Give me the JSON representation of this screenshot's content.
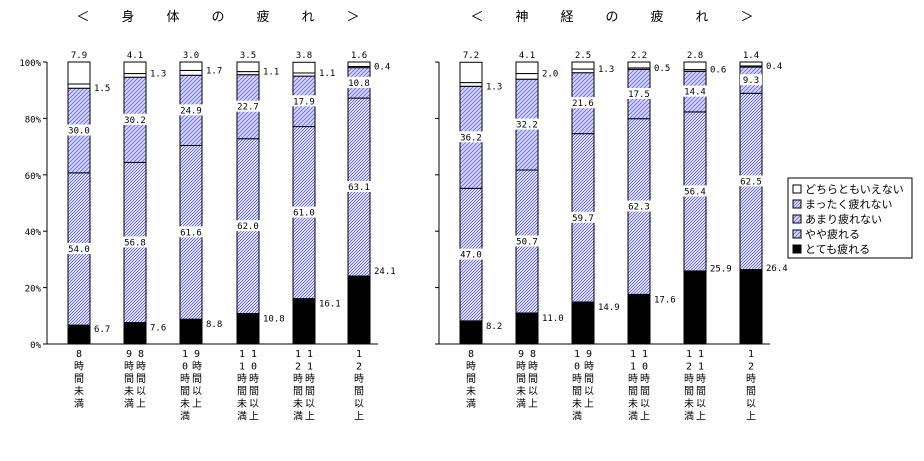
{
  "chart_data": {
    "type": "bar",
    "stacked": true,
    "y_axis": {
      "min": 0,
      "max": 100,
      "ticks": [
        "0%",
        "20%",
        "40%",
        "60%",
        "80%",
        "100%"
      ]
    },
    "legend": {
      "placement": "right",
      "entries": [
        "どちらともいえない",
        "まったく疲れない",
        "あまり疲れない",
        "やや疲れる",
        "とても疲れる"
      ]
    },
    "stack_order_bottom_to_top": [
      "とても疲れる",
      "やや疲れる",
      "あまり疲れない",
      "まったく疲れない",
      "どちらともいえない"
    ],
    "charts": [
      {
        "title": "＜ 身 体 の 疲 れ ＞",
        "categories": [
          [
            "8",
            "時",
            "間",
            "未",
            "満"
          ],
          [
            "8",
            "時",
            "間",
            "以",
            "上",
            "9",
            "時",
            "間",
            "未",
            "満"
          ],
          [
            "9",
            "時",
            "間",
            "以",
            "上",
            "1",
            "0",
            "時",
            "間",
            "未",
            "満"
          ],
          [
            "1",
            "0",
            "時",
            "間",
            "以",
            "上",
            "1",
            "1",
            "時",
            "間",
            "未",
            "満"
          ],
          [
            "1",
            "1",
            "時",
            "間",
            "以",
            "上",
            "1",
            "2",
            "時",
            "間",
            "未",
            "満"
          ],
          [
            "1",
            "2",
            "時",
            "間",
            "以",
            "上"
          ]
        ],
        "series": [
          {
            "name": "とても疲れる",
            "values": [
              6.7,
              7.6,
              8.8,
              10.8,
              16.1,
              24.1
            ]
          },
          {
            "name": "やや疲れる",
            "values": [
              54.0,
              56.8,
              61.6,
              62.0,
              61.0,
              63.1
            ]
          },
          {
            "name": "あまり疲れない",
            "values": [
              30.0,
              30.2,
              24.9,
              22.7,
              17.9,
              10.8
            ]
          },
          {
            "name": "まったく疲れない",
            "values": [
              1.5,
              1.3,
              1.7,
              1.1,
              1.1,
              0.4
            ]
          },
          {
            "name": "どちらともいえない",
            "values": [
              7.9,
              4.1,
              3.0,
              3.5,
              3.8,
              1.6
            ]
          }
        ],
        "labels": [
          [
            "6.7",
            "54.0",
            "30.0",
            "1.5",
            "7.9"
          ],
          [
            "7.6",
            "56.8",
            "30.2",
            "1.3",
            "4.1"
          ],
          [
            "8.8",
            "61.6",
            "24.9",
            "1.7",
            "3.0"
          ],
          [
            "10.8",
            "62.0",
            "22.7",
            "1.1",
            "3.5"
          ],
          [
            "16.1",
            "61.0",
            "17.9",
            "1.1",
            "3.8"
          ],
          [
            "24.1",
            "63.1",
            "10.8",
            "0.4",
            "1.6"
          ]
        ]
      },
      {
        "title": "＜ 神 経 の 疲 れ ＞",
        "categories": [
          [
            "8",
            "時",
            "間",
            "未",
            "満"
          ],
          [
            "8",
            "時",
            "間",
            "以",
            "上",
            "9",
            "時",
            "間",
            "未",
            "満"
          ],
          [
            "9",
            "時",
            "間",
            "以",
            "上",
            "1",
            "0",
            "時",
            "間",
            "未",
            "満"
          ],
          [
            "1",
            "0",
            "時",
            "間",
            "以",
            "上",
            "1",
            "1",
            "時",
            "間",
            "未",
            "満"
          ],
          [
            "1",
            "1",
            "時",
            "間",
            "以",
            "上",
            "1",
            "2",
            "時",
            "間",
            "未",
            "満"
          ],
          [
            "1",
            "2",
            "時",
            "間",
            "以",
            "上"
          ]
        ],
        "series": [
          {
            "name": "とても疲れる",
            "values": [
              8.2,
              11.0,
              14.9,
              17.6,
              25.9,
              26.4
            ]
          },
          {
            "name": "やや疲れる",
            "values": [
              47.0,
              50.7,
              59.7,
              62.3,
              56.4,
              62.5
            ]
          },
          {
            "name": "あまり疲れない",
            "values": [
              36.2,
              32.2,
              21.6,
              17.5,
              14.4,
              9.3
            ]
          },
          {
            "name": "まったく疲れない",
            "values": [
              1.3,
              2.0,
              1.3,
              0.5,
              0.6,
              0.4
            ]
          },
          {
            "name": "どちらともいえない",
            "values": [
              7.2,
              4.1,
              2.5,
              2.2,
              2.8,
              1.4
            ]
          }
        ],
        "labels": [
          [
            "8.2",
            "47.0",
            "36.2",
            "1.3",
            "7.2"
          ],
          [
            "11.0",
            "50.7",
            "32.2",
            "2.0",
            "4.1"
          ],
          [
            "14.9",
            "59.7",
            "21.6",
            "1.3",
            "2.5"
          ],
          [
            "17.6",
            "62.3",
            "17.5",
            "0.5",
            "2.2"
          ],
          [
            "25.9",
            "56.4",
            "14.4",
            "0.6",
            "2.8"
          ],
          [
            "26.4",
            "62.5",
            "9.3",
            "0.4",
            "1.4"
          ]
        ]
      }
    ],
    "colors": {
      "とても疲れる": "#000000",
      "やや疲れる": "#c8c8ff",
      "あまり疲れない": "#c8c8ff",
      "まったく疲れない": "#ffffff",
      "どちらともいえない": "#ffffff",
      "hatch": "#7070dd"
    }
  }
}
